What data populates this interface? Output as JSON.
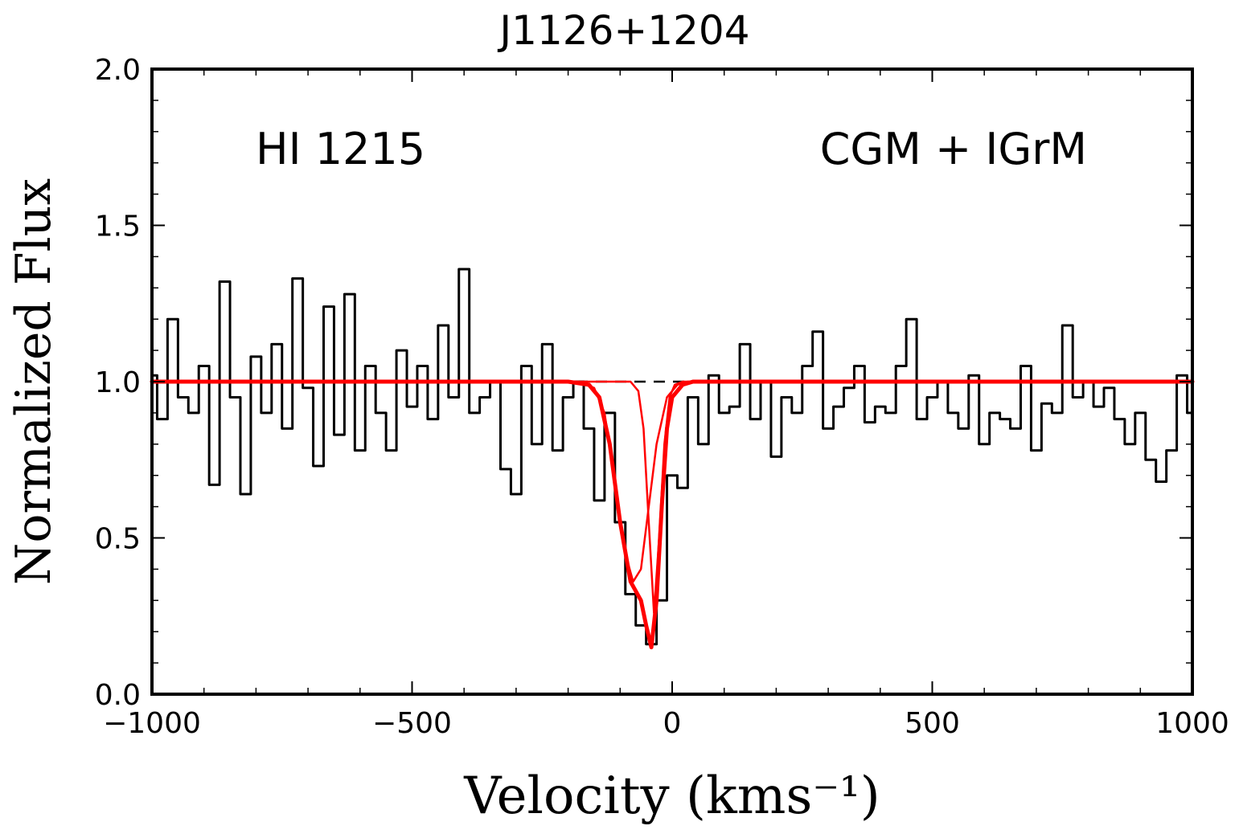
{
  "chart_data": {
    "type": "line",
    "title": "J1126+1204",
    "xlabel": "Velocity (kms⁻¹)",
    "ylabel": "Normalized Flux",
    "annotations": [
      "HI 1215",
      "CGM + IGrM"
    ],
    "xlim": [
      -1000,
      1000
    ],
    "ylim": [
      0,
      2
    ],
    "xticks": [
      {
        "value": -1000,
        "label": "−1000"
      },
      {
        "value": -500,
        "label": "−500"
      },
      0,
      500,
      1000
    ],
    "yticks": [
      {
        "value": 0,
        "label": "0.0"
      },
      {
        "value": 0.5,
        "label": "0.5"
      },
      {
        "value": 1,
        "label": "1.0"
      },
      {
        "value": 1.5,
        "label": "1.5"
      },
      {
        "value": 2,
        "label": "2.0"
      }
    ],
    "xminorticks": [
      -900,
      -800,
      -700,
      -600,
      -400,
      -300,
      -200,
      -100,
      100,
      200,
      300,
      400,
      600,
      700,
      800,
      900
    ],
    "yminorticks": [
      0.1,
      0.2,
      0.3,
      0.4,
      0.6,
      0.7,
      0.8,
      0.9,
      1.1,
      1.2,
      1.3,
      1.4,
      1.6,
      1.7,
      1.8,
      1.9
    ],
    "continuum": 1,
    "series": [
      {
        "style": "steps",
        "color": "#000000",
        "linewidth": 3,
        "x": [
          -1000,
          -980,
          -960,
          -940,
          -920,
          -900,
          -880,
          -860,
          -840,
          -820,
          -800,
          -780,
          -760,
          -740,
          -720,
          -700,
          -680,
          -660,
          -640,
          -620,
          -600,
          -580,
          -560,
          -540,
          -520,
          -500,
          -480,
          -460,
          -440,
          -420,
          -400,
          -380,
          -360,
          -340,
          -320,
          -300,
          -280,
          -260,
          -240,
          -220,
          -200,
          -180,
          -160,
          -140,
          -120,
          -100,
          -80,
          -60,
          -40,
          -20,
          0,
          20,
          40,
          60,
          80,
          100,
          120,
          140,
          160,
          180,
          200,
          220,
          240,
          260,
          280,
          300,
          320,
          340,
          360,
          380,
          400,
          420,
          440,
          460,
          480,
          500,
          520,
          540,
          560,
          580,
          600,
          620,
          640,
          660,
          680,
          700,
          720,
          740,
          760,
          780,
          800,
          820,
          840,
          860,
          880,
          900,
          920,
          940,
          960,
          980,
          1000
        ],
        "values": [
          1.02,
          0.88,
          1.2,
          0.95,
          0.9,
          1.05,
          0.67,
          1.32,
          0.95,
          0.64,
          1.08,
          0.9,
          1.12,
          0.85,
          1.33,
          0.98,
          0.73,
          1.24,
          0.83,
          1.28,
          0.78,
          1.05,
          0.9,
          0.78,
          1.1,
          0.92,
          1.05,
          0.88,
          1.18,
          0.95,
          1.36,
          0.9,
          0.95,
          1.0,
          0.72,
          0.64,
          1.05,
          0.8,
          1.12,
          0.78,
          0.95,
          1.0,
          0.85,
          0.62,
          0.9,
          0.55,
          0.32,
          0.22,
          0.16,
          0.3,
          0.7,
          0.66,
          0.95,
          0.8,
          1.02,
          0.9,
          0.92,
          1.12,
          0.88,
          1.0,
          0.76,
          0.95,
          0.9,
          1.05,
          1.16,
          0.85,
          0.92,
          0.98,
          1.05,
          0.87,
          0.92,
          0.9,
          1.05,
          1.2,
          0.88,
          0.95,
          1.0,
          0.9,
          0.85,
          1.02,
          0.8,
          0.9,
          0.88,
          0.85,
          1.05,
          0.78,
          0.93,
          0.9,
          1.18,
          0.95,
          1.0,
          0.92,
          0.98,
          0.88,
          0.8,
          0.9,
          0.75,
          0.68,
          0.78,
          1.02,
          0.9
        ]
      },
      {
        "style": "line",
        "color": "#ff0000",
        "linewidth": 2.5,
        "x": [
          -1000,
          -180,
          -150,
          -130,
          -110,
          -90,
          -75,
          -60,
          -45,
          -30,
          -10,
          10,
          30,
          1000
        ],
        "values": [
          1,
          1,
          0.98,
          0.9,
          0.68,
          0.45,
          0.36,
          0.4,
          0.6,
          0.8,
          0.95,
          0.99,
          1,
          1
        ]
      },
      {
        "style": "line",
        "color": "#ff0000",
        "linewidth": 2.5,
        "x": [
          -1000,
          -80,
          -65,
          -55,
          -45,
          -35,
          -25,
          -15,
          -5,
          5,
          20,
          1000
        ],
        "values": [
          1,
          1,
          0.97,
          0.85,
          0.55,
          0.26,
          0.5,
          0.8,
          0.95,
          0.99,
          1,
          1
        ]
      },
      {
        "style": "line",
        "color": "#ff0000",
        "linewidth": 5,
        "x": [
          -1000,
          -200,
          -160,
          -140,
          -120,
          -100,
          -80,
          -60,
          -50,
          -40,
          -30,
          -20,
          -10,
          0,
          20,
          40,
          1000
        ],
        "values": [
          1,
          1,
          0.99,
          0.95,
          0.8,
          0.55,
          0.36,
          0.3,
          0.22,
          0.15,
          0.3,
          0.6,
          0.85,
          0.95,
          0.99,
          1,
          1
        ]
      }
    ]
  }
}
